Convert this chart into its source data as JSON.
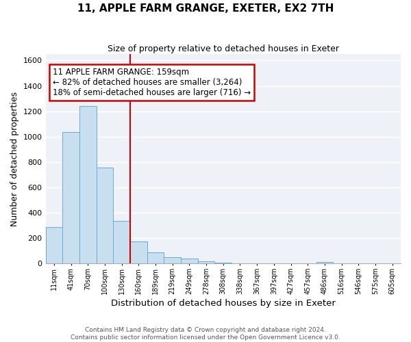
{
  "title": "11, APPLE FARM GRANGE, EXETER, EX2 7TH",
  "subtitle": "Size of property relative to detached houses in Exeter",
  "xlabel": "Distribution of detached houses by size in Exeter",
  "ylabel": "Number of detached properties",
  "bar_labels": [
    "11sqm",
    "41sqm",
    "70sqm",
    "100sqm",
    "130sqm",
    "160sqm",
    "189sqm",
    "219sqm",
    "249sqm",
    "278sqm",
    "308sqm",
    "338sqm",
    "367sqm",
    "397sqm",
    "427sqm",
    "457sqm",
    "486sqm",
    "516sqm",
    "546sqm",
    "575sqm",
    "605sqm"
  ],
  "bar_values": [
    285,
    1035,
    1240,
    755,
    335,
    175,
    85,
    50,
    38,
    18,
    8,
    0,
    0,
    0,
    0,
    0,
    10,
    0,
    0,
    0,
    0
  ],
  "bar_color": "#c8dff0",
  "bar_edge_color": "#6aaad4",
  "vline_color": "#cc0000",
  "ylim": [
    0,
    1650
  ],
  "yticks": [
    0,
    200,
    400,
    600,
    800,
    1000,
    1200,
    1400,
    1600
  ],
  "annotation_text": "11 APPLE FARM GRANGE: 159sqm\n← 82% of detached houses are smaller (3,264)\n18% of semi-detached houses are larger (716) →",
  "annotation_box_color": "#ffffff",
  "annotation_box_edge": "#cc0000",
  "footer_text": "Contains HM Land Registry data © Crown copyright and database right 2024.\nContains public sector information licensed under the Open Government Licence v3.0.",
  "background_color": "#eef2f8",
  "grid_color": "#ffffff",
  "vline_x_index": 5
}
